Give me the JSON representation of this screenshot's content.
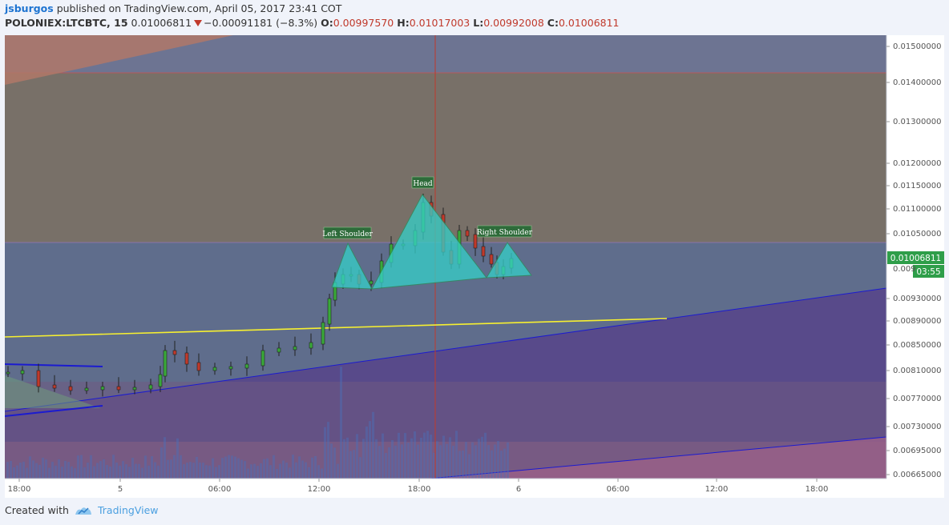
{
  "header": {
    "user": "jsburgos",
    "published": "published on TradingView.com, April 05, 2017 23:41 COT",
    "symbol": "POLONIEX:LTCBTC, 15",
    "last": "0.01006811",
    "change": "−0.00091181 (−8.3%)",
    "o_label": "O:",
    "o_value": "0.00997570",
    "h_label": "H:",
    "h_value": "0.01017003",
    "l_label": "L:",
    "l_value": "0.00992008",
    "c_label": "C:",
    "c_value": "0.01006811"
  },
  "footer": {
    "created_with": "Created with",
    "brand": "TradingView"
  },
  "colors": {
    "background": "#f0f3fa",
    "up": "#3aa83a",
    "down": "#c0392b",
    "price_badge": "#2e9e49",
    "pattern_fill": "#35d0c8",
    "trend_yellow": "#f7f030",
    "channel_blue": "#1b1bd0"
  },
  "chart_data": {
    "type": "candlestick",
    "price_axis_labels": [
      "0.01500000",
      "0.01400000",
      "0.01300000",
      "0.01200000",
      "0.01150000",
      "0.01100000",
      "0.01050000",
      "0.00930000",
      "0.00890000",
      "0.00850000",
      "0.00810000",
      "0.00770000",
      "0.00730000",
      "0.00695000",
      "0.00665000"
    ],
    "time_axis_labels": [
      "18:00",
      "5",
      "06:00",
      "12:00",
      "18:00",
      "6",
      "06:00",
      "12:00",
      "18:00"
    ],
    "last_price": "0.01006811",
    "partial_label": "0.009",
    "countdown": "03:55",
    "annotations": [
      "Left Shoulder",
      "Head",
      "Right Shoulder"
    ],
    "pattern": "head-and-shoulders"
  }
}
